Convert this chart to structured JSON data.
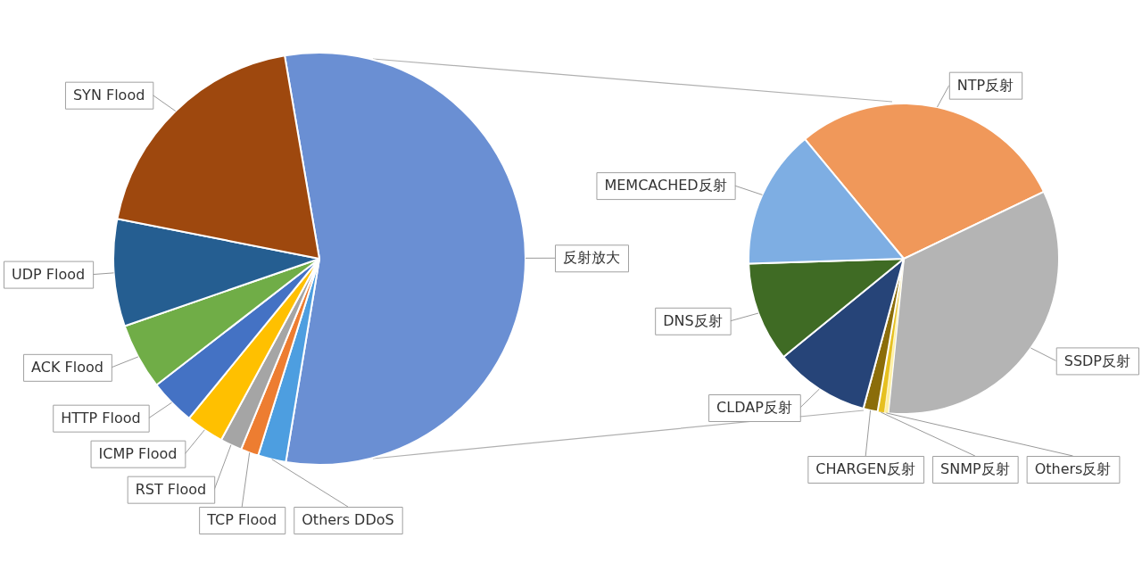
{
  "chart_data": [
    {
      "type": "pie",
      "categories": [
        "反射放大",
        "Others DDoS",
        "TCP Flood",
        "RST Flood",
        "ICMP Flood",
        "HTTP Flood",
        "ACK Flood",
        "UDP Flood",
        "SYN Flood"
      ],
      "values": [
        55.3,
        2.2,
        1.4,
        1.7,
        3.0,
        3.6,
        5.2,
        8.4,
        19.2
      ],
      "colors": [
        "#6a8fd3",
        "#4d9ee0",
        "#ed7d31",
        "#a5a5a5",
        "#ffc000",
        "#4472c4",
        "#70ad47",
        "#255e91",
        "#9e480e"
      ]
    },
    {
      "type": "pie",
      "categories": [
        "NTP反射",
        "SSDP反射",
        "Others反射",
        "SNMP反射",
        "CHARGEN反射",
        "CLDAP反射",
        "DNS反射",
        "MEMCACHED反射"
      ],
      "values": [
        28.9,
        33.7,
        0.4,
        0.7,
        1.5,
        9.9,
        10.4,
        14.5
      ],
      "colors": [
        "#f0985a",
        "#b4b4b4",
        "#fff0a0",
        "#e6c020",
        "#8b6d0a",
        "#264478",
        "#3f6b24",
        "#7eaee3"
      ]
    }
  ]
}
